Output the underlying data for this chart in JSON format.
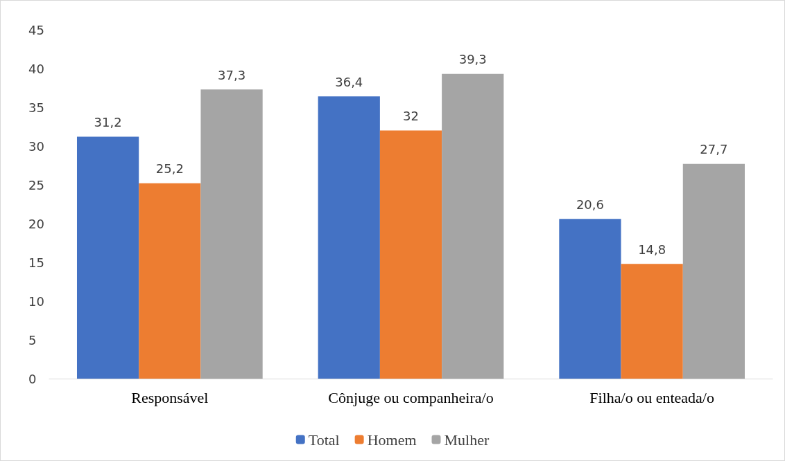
{
  "chart_data": {
    "type": "bar",
    "categories": [
      "Responsável",
      "Cônjuge ou companheira/o",
      "Filha/o ou enteada/o"
    ],
    "series": [
      {
        "name": "Total",
        "color": "#4472c4",
        "values": [
          31.2,
          36.4,
          20.6
        ],
        "value_labels": [
          "31,2",
          "36,4",
          "20,6"
        ]
      },
      {
        "name": "Homem",
        "color": "#ed7d31",
        "values": [
          25.2,
          32,
          14.8
        ],
        "value_labels": [
          "25,2",
          "32",
          "14,8"
        ]
      },
      {
        "name": "Mulher",
        "color": "#a5a5a5",
        "values": [
          37.3,
          39.3,
          27.7
        ],
        "value_labels": [
          "37,3",
          "39,3",
          "27,7"
        ]
      }
    ],
    "ylim": [
      0,
      45
    ],
    "yticks": [
      0,
      5,
      10,
      15,
      20,
      25,
      30,
      35,
      40,
      45
    ],
    "grid": false,
    "legend": "bottom"
  }
}
